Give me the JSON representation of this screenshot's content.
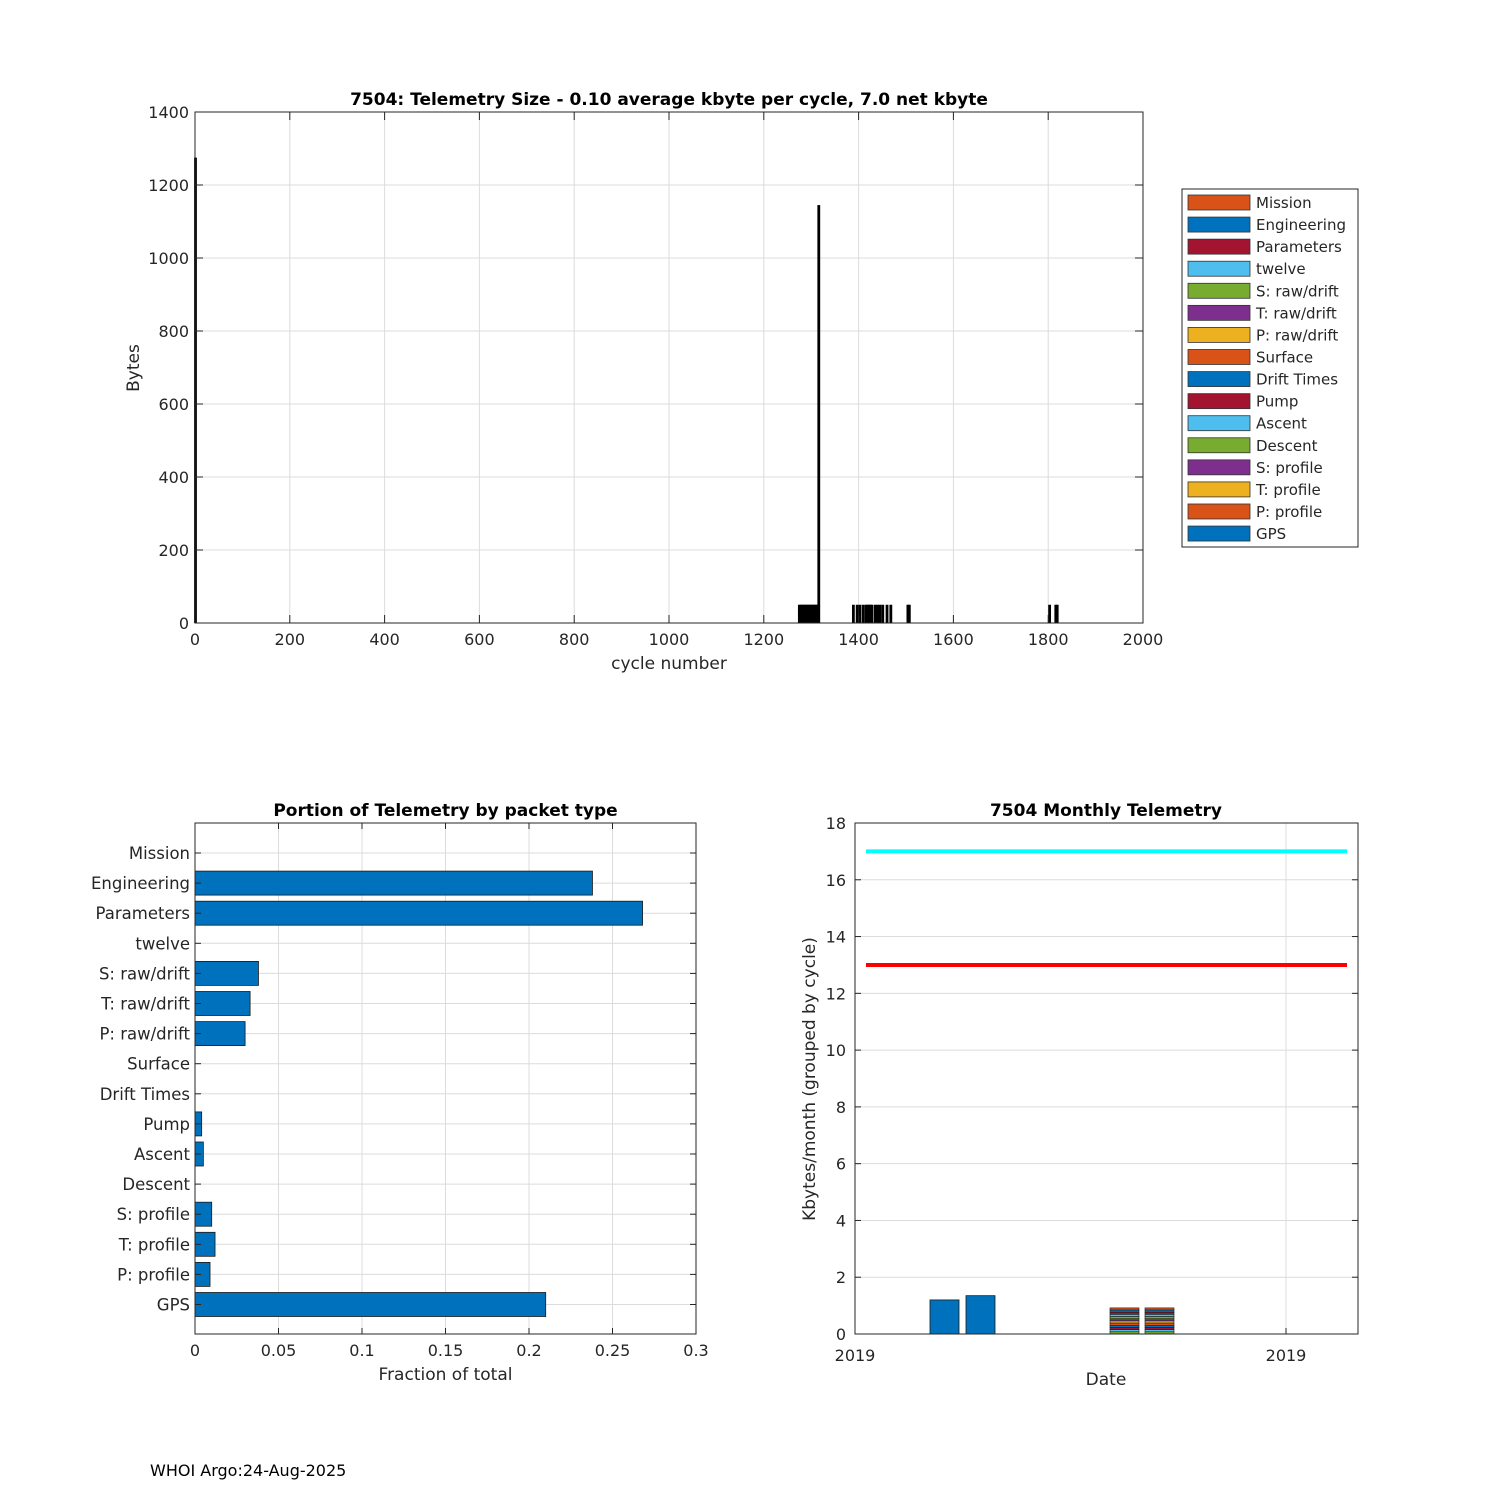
{
  "footer": "WHOI Argo:24-Aug-2025",
  "colors": {
    "orange": "#D95319",
    "blue": "#0072BD",
    "red_dark": "#A2142F",
    "cyan_light": "#4DBEEE",
    "green": "#77AC30",
    "purple": "#7E2F8E",
    "yellow": "#EDB120",
    "limit_cyan": "#00FFFF",
    "limit_red": "#FF0000",
    "grid": "#dcdcdc",
    "axis": "#262626"
  },
  "chart_data": [
    {
      "id": "telemetry-size",
      "type": "bar",
      "title": "7504: Telemetry Size - 0.10 average kbyte per cycle,    7.0 net kbyte",
      "xlabel": "cycle number",
      "ylabel": "Bytes",
      "xlim": [
        0,
        2000
      ],
      "ylim": [
        0,
        1400
      ],
      "xticks": [
        0,
        200,
        400,
        600,
        800,
        1000,
        1200,
        1400,
        1600,
        1800,
        2000
      ],
      "yticks": [
        0,
        200,
        400,
        600,
        800,
        1000,
        1200,
        1400
      ],
      "grid": true,
      "bars": [
        {
          "x": 1,
          "y": 1275
        },
        {
          "x": 1275,
          "y": 50
        },
        {
          "x": 1278,
          "y": 50
        },
        {
          "x": 1281,
          "y": 50
        },
        {
          "x": 1284,
          "y": 50
        },
        {
          "x": 1287,
          "y": 50
        },
        {
          "x": 1290,
          "y": 50
        },
        {
          "x": 1293,
          "y": 50
        },
        {
          "x": 1296,
          "y": 50
        },
        {
          "x": 1299,
          "y": 50
        },
        {
          "x": 1302,
          "y": 50
        },
        {
          "x": 1305,
          "y": 50
        },
        {
          "x": 1308,
          "y": 50
        },
        {
          "x": 1311,
          "y": 50
        },
        {
          "x": 1314,
          "y": 50
        },
        {
          "x": 1316,
          "y": 1145
        },
        {
          "x": 1389,
          "y": 50
        },
        {
          "x": 1397,
          "y": 50
        },
        {
          "x": 1403,
          "y": 50
        },
        {
          "x": 1410,
          "y": 50
        },
        {
          "x": 1416,
          "y": 50
        },
        {
          "x": 1419,
          "y": 50
        },
        {
          "x": 1422,
          "y": 50
        },
        {
          "x": 1425,
          "y": 50
        },
        {
          "x": 1428,
          "y": 50
        },
        {
          "x": 1435,
          "y": 50
        },
        {
          "x": 1440,
          "y": 50
        },
        {
          "x": 1445,
          "y": 50
        },
        {
          "x": 1451,
          "y": 50
        },
        {
          "x": 1460,
          "y": 50
        },
        {
          "x": 1468,
          "y": 50
        },
        {
          "x": 1504,
          "y": 50
        },
        {
          "x": 1507,
          "y": 50
        },
        {
          "x": 1803,
          "y": 50
        },
        {
          "x": 1816,
          "y": 50
        },
        {
          "x": 1819,
          "y": 50
        }
      ],
      "legend_position": "outside-right",
      "legend": [
        {
          "name": "Mission",
          "color": "#D95319"
        },
        {
          "name": "Engineering",
          "color": "#0072BD"
        },
        {
          "name": "Parameters",
          "color": "#A2142F"
        },
        {
          "name": "twelve",
          "color": "#4DBEEE"
        },
        {
          "name": "S: raw/drift",
          "color": "#77AC30"
        },
        {
          "name": "T: raw/drift",
          "color": "#7E2F8E"
        },
        {
          "name": "P: raw/drift",
          "color": "#EDB120"
        },
        {
          "name": "Surface",
          "color": "#D95319"
        },
        {
          "name": "Drift Times",
          "color": "#0072BD"
        },
        {
          "name": "Pump",
          "color": "#A2142F"
        },
        {
          "name": "Ascent",
          "color": "#4DBEEE"
        },
        {
          "name": "Descent",
          "color": "#77AC30"
        },
        {
          "name": "S: profile",
          "color": "#7E2F8E"
        },
        {
          "name": "T: profile",
          "color": "#EDB120"
        },
        {
          "name": "P: profile",
          "color": "#D95319"
        },
        {
          "name": "GPS",
          "color": "#0072BD"
        }
      ]
    },
    {
      "id": "portion-by-type",
      "type": "bar",
      "orientation": "horizontal",
      "title": "Portion of Telemetry by packet type",
      "xlabel": "Fraction of total",
      "ylabel": "",
      "xlim": [
        0,
        0.3
      ],
      "xticks": [
        0,
        0.05,
        0.1,
        0.15,
        0.2,
        0.25,
        0.3
      ],
      "xtick_labels": [
        "0",
        "0.05",
        "0.1",
        "0.15",
        "0.2",
        "0.25",
        "0.3"
      ],
      "grid": true,
      "categories": [
        "Mission",
        "Engineering",
        "Parameters",
        "twelve",
        "S: raw/drift",
        "T: raw/drift",
        "P: raw/drift",
        "Surface",
        "Drift Times",
        "Pump",
        "Ascent",
        "Descent",
        "S: profile",
        "T: profile",
        "P: profile",
        "GPS"
      ],
      "values": [
        0,
        0.238,
        0.268,
        0,
        0.038,
        0.033,
        0.03,
        0,
        0,
        0.004,
        0.005,
        0,
        0.01,
        0.012,
        0.009,
        0.21
      ]
    },
    {
      "id": "monthly-telemetry",
      "type": "bar",
      "title": "7504 Monthly Telemetry",
      "xlabel": "Date",
      "ylabel": "Kbytes/month (grouped by cycle)",
      "ylim": [
        0,
        18
      ],
      "yticks": [
        0,
        2,
        4,
        6,
        8,
        10,
        12,
        14,
        16,
        18
      ],
      "xtick_labels": [
        "2019",
        "2019"
      ],
      "grid": true,
      "bars": [
        {
          "style": "solid",
          "value": 1.2
        },
        {
          "style": "solid",
          "value": 1.35
        },
        {
          "style": "stacked",
          "value": 0.92
        },
        {
          "style": "stacked",
          "value": 0.92
        }
      ],
      "reference_lines": [
        {
          "value": 17,
          "color": "#00FFFF"
        },
        {
          "value": 13,
          "color": "#FF0000"
        }
      ]
    }
  ]
}
